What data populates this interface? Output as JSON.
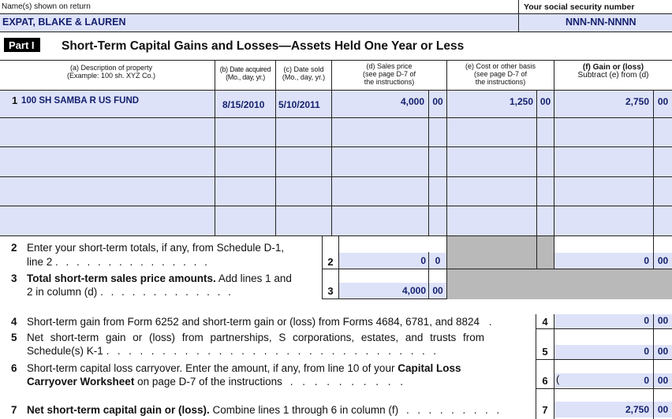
{
  "header": {
    "name_label": "Name(s) shown on return",
    "name_value": "EXPAT, BLAKE & LAUREN",
    "ssn_label": "Your social security number",
    "ssn_value": "NNN-NN-NNNN"
  },
  "part": {
    "badge": "Part I",
    "title": "Short-Term Capital Gains and Losses—Assets Held One Year or Less"
  },
  "columns": {
    "a_1": "(a) Description of property",
    "a_2": "(Example: 100 sh. XYZ Co.)",
    "b_1": "(b) Date acquired",
    "b_2": "(Mo., day, yr.)",
    "c_1": "(c) Date sold",
    "c_2": "(Mo., day, yr.)",
    "d_1": "(d) Sales price",
    "d_2": "(see page D-7 of",
    "d_3": "the instructions)",
    "e_1": "(e) Cost or other basis",
    "e_2": "(see page D-7 of",
    "e_3": "the instructions)",
    "f_1": "(f) Gain or (loss)",
    "f_2": "Subtract (e) from (d)"
  },
  "line1": {
    "num": "1",
    "description": "100 SH SAMBA R US FUND",
    "date_acquired": "8/15/2010",
    "date_sold": "5/10/2011",
    "sales_price": "4,000",
    "sales_cents": "00",
    "cost": "1,250",
    "cost_cents": "00",
    "gain": "2,750",
    "gain_cents": "00"
  },
  "line2": {
    "num": "2",
    "text1": "Enter your short-term totals, if any, from Schedule D-1,",
    "text2": "line 2",
    "dots": ". . . . . . . . . . . . . . .",
    "box": "2",
    "sales": "0",
    "sales_cents": "0",
    "gain": "0",
    "gain_cents": "00"
  },
  "line3": {
    "num": "3",
    "text1_bold": "Total short-term sales price amounts.",
    "text1_rest": " Add lines 1 and",
    "text2": "2 in column (d)",
    "dots": ". . . . . . . . . . . . .",
    "box": "3",
    "sales": "4,000",
    "sales_cents": "00"
  },
  "line4": {
    "num": "4",
    "text": "Short-term gain from Form 6252 and short-term gain or (loss) from Forms 4684, 6781, and 8824",
    "dots": ".",
    "box": "4",
    "amount": "0",
    "cents": "00"
  },
  "line5": {
    "num": "5",
    "text1": "Net short-term gain or (loss) from partnerships, S corporations, estates, and trusts from",
    "text2": "Schedule(s) K-1",
    "dots": ". . . . . . . . . . . . . . . . . . . . . . . . . . . . . .",
    "box": "5",
    "amount": "0",
    "cents": "00"
  },
  "line6": {
    "num": "6",
    "text1": "Short-term capital loss carryover. Enter the amount, if any, from line 10 of your ",
    "text1_bold": "Capital Loss",
    "text2_bold": "Carryover Worksheet",
    "text2": " on page D-7 of the instructions",
    "dots": ". . . . . . . . . .",
    "box": "6",
    "paren": "(",
    "amount": "0",
    "cents": "00",
    "paren_close": ")"
  },
  "line7": {
    "num": "7",
    "text_bold": "Net short-term capital gain or (loss).",
    "text": " Combine lines 1 through 6 in column (f)",
    "dots": ". . . . . . . . .",
    "box": "7",
    "amount": "2,750",
    "cents": "00"
  }
}
